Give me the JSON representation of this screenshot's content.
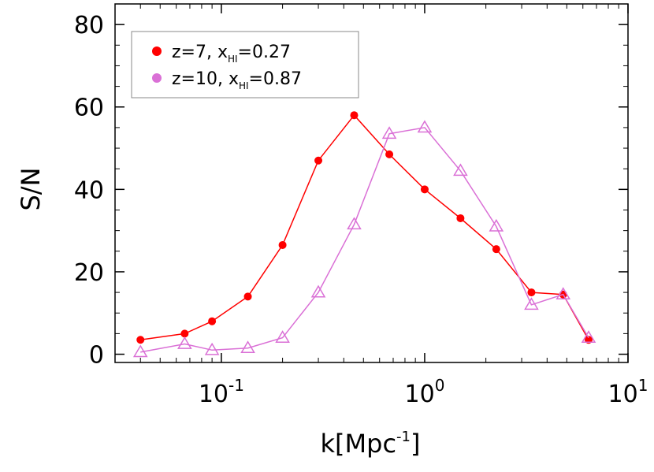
{
  "chart_data": {
    "type": "line",
    "title": "",
    "xlabel": "k[Mpc",
    "xlabel_sup": "-1",
    "xlabel_close": "]",
    "ylabel": "S/N",
    "xscale": "log",
    "xlim": [
      0.03,
      10
    ],
    "ylim": [
      -2,
      85
    ],
    "xticks": [
      {
        "value": 0.1,
        "base": "10",
        "exp": "-1"
      },
      {
        "value": 1,
        "base": "10",
        "exp": "0"
      },
      {
        "value": 10,
        "base": "10",
        "exp": "1"
      }
    ],
    "yticks": [
      0,
      20,
      40,
      60,
      80
    ],
    "legend_position": "top-left",
    "series": [
      {
        "name": "z=7, x",
        "name_sub": "HI",
        "name_tail": "=0.27",
        "color": "#ff0000",
        "marker": "filled-circle",
        "x": [
          0.04,
          0.066,
          0.09,
          0.135,
          0.2,
          0.3,
          0.45,
          0.67,
          1.0,
          1.5,
          2.25,
          3.35,
          4.8,
          6.4
        ],
        "y": [
          3.5,
          5.0,
          8.0,
          14.0,
          26.5,
          47.0,
          58.0,
          48.5,
          40.0,
          33.0,
          25.5,
          15.0,
          14.5,
          3.5
        ]
      },
      {
        "name": "z=10, x",
        "name_sub": "HI",
        "name_tail": "=0.87",
        "color": "#da70d6",
        "marker": "open-triangle",
        "x": [
          0.04,
          0.066,
          0.09,
          0.135,
          0.2,
          0.3,
          0.45,
          0.67,
          1.0,
          1.5,
          2.25,
          3.35,
          4.8,
          6.4
        ],
        "y": [
          0.5,
          2.5,
          1.0,
          1.5,
          4.0,
          15.0,
          31.5,
          53.5,
          55.0,
          44.5,
          31.0,
          12.0,
          14.5,
          4.0
        ]
      }
    ]
  }
}
